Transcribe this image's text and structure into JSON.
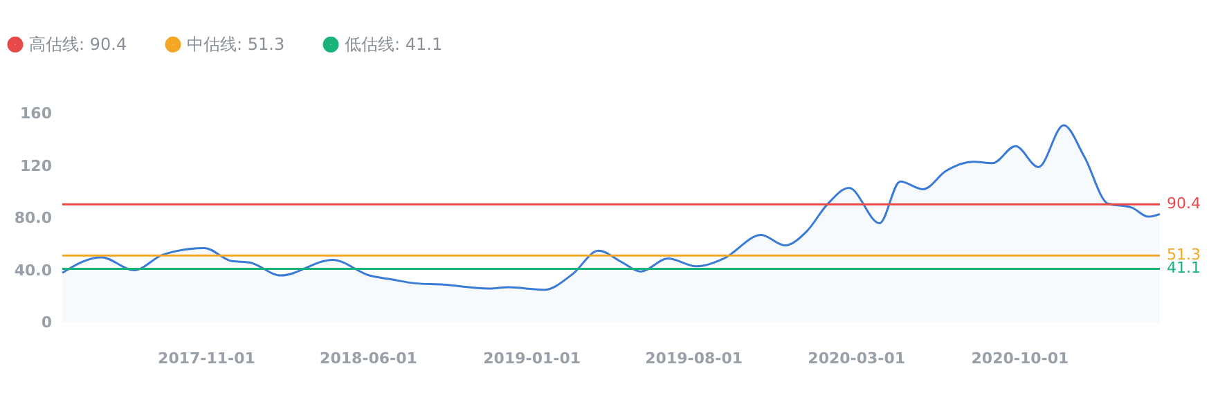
{
  "chart_data": {
    "type": "area",
    "legend": "top left",
    "xlim": [
      "2017-04-27",
      "2021-04-03"
    ],
    "xticks": [
      {
        "value": "2017-11-01",
        "label": "2017-11-01"
      },
      {
        "value": "2018-06-01",
        "label": "2018-06-01"
      },
      {
        "value": "2019-01-01",
        "label": "2019-01-01"
      },
      {
        "value": "2019-08-01",
        "label": "2019-08-01"
      },
      {
        "value": "2020-03-01",
        "label": "2020-03-01"
      },
      {
        "value": "2020-10-01",
        "label": "2020-10-01"
      }
    ],
    "ylim": [
      0,
      160
    ],
    "yticks": [
      0,
      {
        "value": 40,
        "label": "40.0"
      },
      {
        "value": 80,
        "label": "80.0"
      },
      120,
      160
    ],
    "series": [
      {
        "color": "#3a7bd5",
        "x": [
          "2017-04-27",
          "2017-06-17",
          "2017-07-30",
          "2017-09-06",
          "2017-10-30",
          "2017-12-05",
          "2017-12-28",
          "2018-02-07",
          "2018-04-16",
          "2018-06-03",
          "2018-07-02",
          "2018-08-02",
          "2018-09-08",
          "2018-11-07",
          "2018-12-02",
          "2019-01-18",
          "2019-02-24",
          "2019-03-30",
          "2019-04-30",
          "2019-05-24",
          "2019-06-29",
          "2019-08-05",
          "2019-09-10",
          "2019-10-29",
          "2019-11-29",
          "2019-12-28",
          "2020-01-23",
          "2020-02-21",
          "2020-04-01",
          "2020-04-28",
          "2020-05-28",
          "2020-06-27",
          "2020-08-02",
          "2020-08-27",
          "2020-09-26",
          "2020-10-26",
          "2020-11-28",
          "2020-12-25",
          "2021-01-25",
          "2021-02-25",
          "2021-03-19",
          "2021-04-03"
        ],
        "values": [
          38,
          50,
          40,
          52,
          57,
          47,
          46,
          36,
          48,
          36,
          33,
          30,
          29,
          26,
          27,
          25,
          37,
          55,
          46,
          39,
          49,
          43,
          49,
          67,
          59,
          70,
          90,
          103,
          76,
          108,
          102,
          116,
          123,
          122,
          135,
          119,
          151,
          127,
          91,
          88,
          81,
          83
        ]
      },
      {
        "type": "line",
        "name": "高估线: 90.4",
        "color": "#e84a4a",
        "x": [
          "2017-04-27",
          "2021-04-03"
        ],
        "values": [
          90.4,
          90.4
        ],
        "value_labels": [
          null,
          "90.4"
        ]
      },
      {
        "type": "line",
        "name": "中估线: 51.3",
        "color": "#f5a623",
        "x": [
          "2017-04-27",
          "2021-04-03"
        ],
        "values": [
          51.3,
          51.3
        ],
        "value_labels": [
          null,
          "51.3"
        ]
      },
      {
        "type": "line",
        "name": "低估线: 41.1",
        "color": "#19b37a",
        "x": [
          "2017-04-27",
          "2021-04-03"
        ],
        "values": [
          41.1,
          41.1
        ],
        "value_labels": [
          null,
          "41.1"
        ]
      }
    ]
  }
}
